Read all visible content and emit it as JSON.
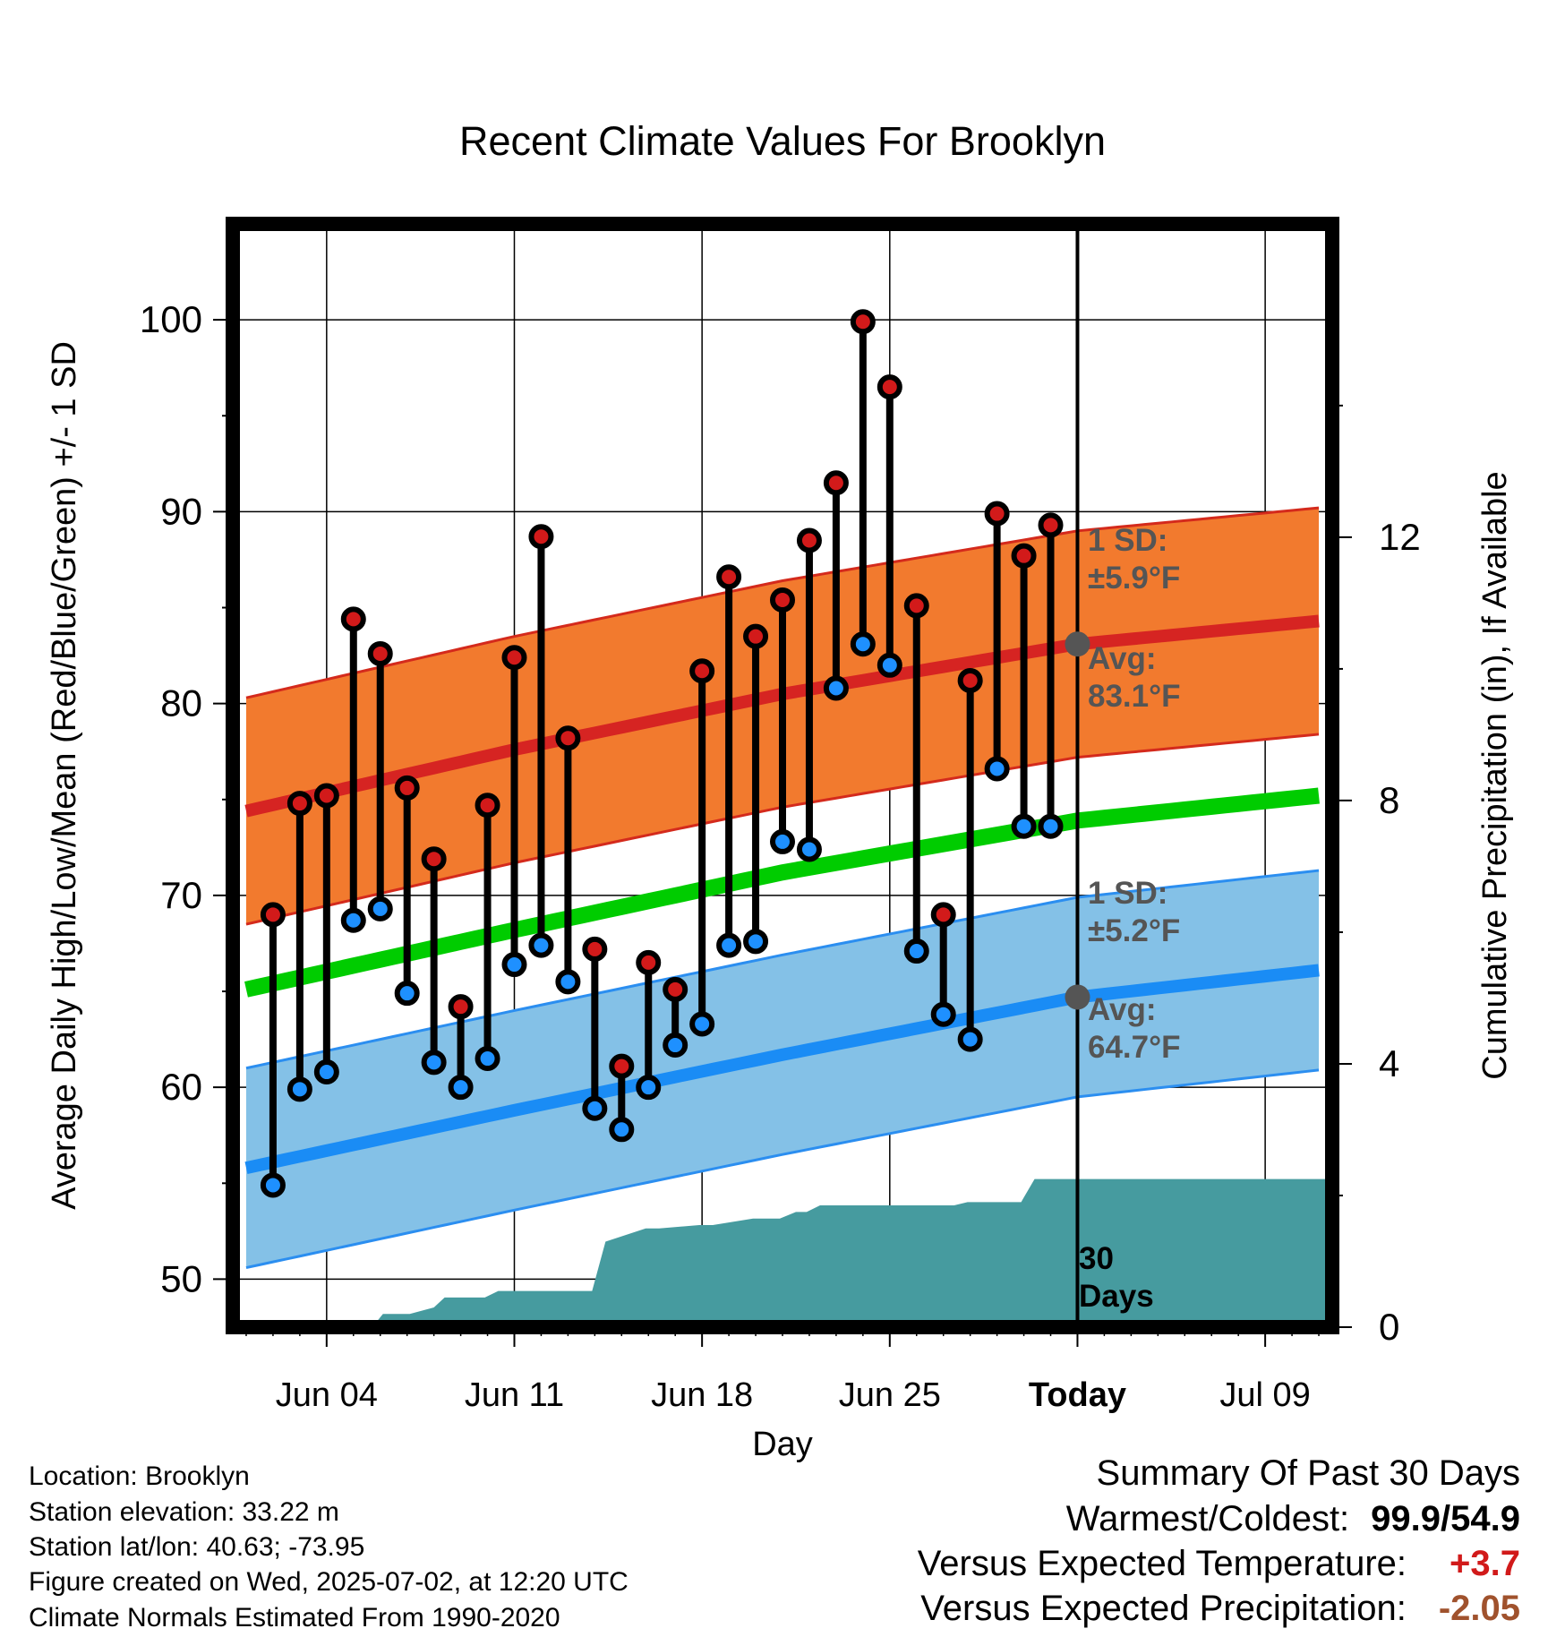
{
  "chart_data": {
    "type": "line",
    "title": "Recent Climate Values For Brooklyn",
    "xlabel": "Day",
    "ylabel_left": "Average Daily High/Low/Mean (Red/Blue/Green) +/- 1 SD",
    "ylabel_right": "Cumulative Precipitation (in), If Available",
    "x_tick_labels": [
      {
        "day": 3,
        "label": "Jun 04"
      },
      {
        "day": 10,
        "label": "Jun 11"
      },
      {
        "day": 17,
        "label": "Jun 18"
      },
      {
        "day": 24,
        "label": "Jun 25"
      },
      {
        "day": 31,
        "label": "Today"
      },
      {
        "day": 38,
        "label": "Jul 09"
      }
    ],
    "xlim": [
      -0.5,
      40.5
    ],
    "today_day": 31,
    "ylim_left": [
      47.5,
      105
    ],
    "y_ticks_left": [
      50,
      60,
      70,
      80,
      90,
      100
    ],
    "y_minor_ticks_left": [
      55,
      65,
      75,
      85,
      95
    ],
    "ylim_right": [
      0,
      16.76
    ],
    "y_ticks_right": [
      0,
      4,
      8,
      12
    ],
    "grid": true,
    "colors": {
      "high_band": "#f27a2e",
      "high_band_edge": "#d42a1c",
      "high_mean": "#d62422",
      "low_band": "#84c1e7",
      "low_band_edge": "#2b8ef0",
      "low_mean": "#1a8cf5",
      "mean_line": "#00cc00",
      "precip": "#469b9f",
      "high_marker": "#d21a1a",
      "low_marker": "#1e90ff",
      "label_grey": "#555555",
      "temp_anomaly": "#d11a1a",
      "precip_anomaly": "#a0522d"
    },
    "normal_high_avg": {
      "day": [
        0,
        10,
        20,
        31,
        40
      ],
      "values": [
        74.4,
        77.6,
        80.5,
        83.1,
        84.3
      ]
    },
    "normal_high_sd": 5.9,
    "normal_low_avg": {
      "day": [
        0,
        10,
        20,
        31,
        40
      ],
      "values": [
        55.8,
        58.8,
        61.7,
        64.7,
        66.1
      ]
    },
    "normal_low_sd": 5.2,
    "normal_mean": {
      "day": [
        0,
        10,
        20,
        31,
        40
      ],
      "values": [
        65.1,
        68.2,
        71.2,
        73.9,
        75.2
      ]
    },
    "daily": {
      "day": [
        1,
        2,
        3,
        4,
        5,
        6,
        7,
        8,
        9,
        10,
        11,
        12,
        13,
        14,
        15,
        16,
        17,
        18,
        19,
        20,
        21,
        22,
        23,
        24,
        25,
        26,
        27,
        28,
        29,
        30
      ],
      "high": [
        69.0,
        74.8,
        75.2,
        84.4,
        82.6,
        75.6,
        71.9,
        64.2,
        74.7,
        82.4,
        88.7,
        78.2,
        67.2,
        61.1,
        66.5,
        65.1,
        81.7,
        86.6,
        83.5,
        85.4,
        88.5,
        91.5,
        99.9,
        96.5,
        85.1,
        69.0,
        81.2,
        89.9,
        87.7,
        89.3
      ],
      "low": [
        54.9,
        59.9,
        60.8,
        68.7,
        69.3,
        64.9,
        61.3,
        60.0,
        61.5,
        66.4,
        67.4,
        65.5,
        58.9,
        57.8,
        60.0,
        62.2,
        63.3,
        67.4,
        67.6,
        72.8,
        72.4,
        80.8,
        83.1,
        82.0,
        67.1,
        63.8,
        62.5,
        76.6,
        73.6,
        73.6
      ]
    },
    "precip_cumulative": {
      "day": [
        0,
        4.7,
        5.1,
        6.1,
        7.0,
        7.4,
        8.9,
        9.4,
        10.9,
        11.4,
        12.9,
        13.4,
        14.9,
        15.4,
        16.9,
        17.4,
        18.9,
        19.4,
        19.9,
        20.5,
        20.9,
        21.4,
        23.0,
        26.4,
        26.9,
        28.9,
        29.4,
        40.5
      ],
      "values": [
        0,
        0,
        0.2,
        0.2,
        0.3,
        0.45,
        0.45,
        0.55,
        0.55,
        0.55,
        0.55,
        1.3,
        1.5,
        1.5,
        1.55,
        1.55,
        1.65,
        1.65,
        1.65,
        1.75,
        1.75,
        1.85,
        1.85,
        1.85,
        1.9,
        1.9,
        2.25,
        2.25
      ]
    },
    "annotations": {
      "high_sd_label": "1 SD:",
      "high_sd_value": "±5.9°F",
      "high_avg_label": "Avg:",
      "high_avg_value": "83.1°F",
      "low_sd_label": "1 SD:",
      "low_sd_value": "±5.2°F",
      "low_avg_label": "Avg:",
      "low_avg_value": "64.7°F",
      "precip_label_1": "30",
      "precip_label_2": "Days"
    }
  },
  "metadata": {
    "location": "Location: Brooklyn",
    "elevation": "Station elevation: 33.22 m",
    "latlon": "Station lat/lon: 40.63; -73.95",
    "created": "Figure created on Wed, 2025-07-02, at 12:20 UTC",
    "normals": "Climate Normals Estimated From 1990-2020"
  },
  "summary": {
    "heading": "Summary Of Past 30 Days",
    "warm_cold_label": "Warmest/Coldest:",
    "warm_cold_value": "99.9/54.9",
    "temp_label": "Versus Expected Temperature:",
    "temp_value": "+3.7",
    "precip_label": "Versus Expected Precipitation:",
    "precip_value": "-2.05"
  }
}
